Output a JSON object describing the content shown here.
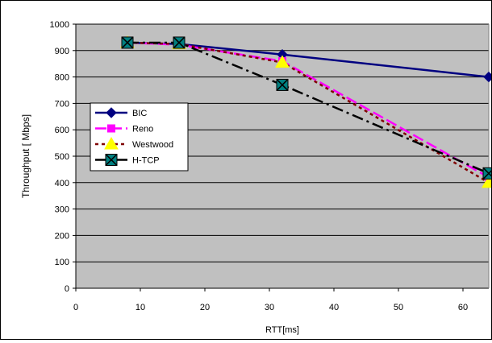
{
  "chart_data": {
    "type": "line",
    "title": "",
    "xlabel": "RTT[ms]",
    "ylabel": "Throughput [ Mbps]",
    "xlim": [
      0,
      64
    ],
    "ylim": [
      0,
      1000
    ],
    "x_ticks": [
      "0",
      "10",
      "20",
      "30",
      "40",
      "50",
      "60"
    ],
    "y_ticks": [
      "0",
      "100",
      "200",
      "300",
      "400",
      "500",
      "600",
      "700",
      "800",
      "900",
      "1000"
    ],
    "grid": true,
    "plot_background": "#c0c0c0",
    "legend_position": "left",
    "series": [
      {
        "name": "BIC",
        "color": "#000080",
        "marker": "diamond",
        "dash": "solid",
        "x": [
          8,
          16,
          32,
          64
        ],
        "y": [
          930,
          925,
          885,
          800
        ]
      },
      {
        "name": "Reno",
        "color": "#ff00ff",
        "marker": "square",
        "dash": "long-dash",
        "x": [
          8,
          16,
          32,
          64
        ],
        "y": [
          930,
          922,
          860,
          420
        ]
      },
      {
        "name": "Westwood",
        "color": "#800000",
        "marker": "triangle",
        "marker_color": "#ffff00",
        "dash": "dotted",
        "x": [
          8,
          16,
          32,
          64
        ],
        "y": [
          930,
          925,
          855,
          400
        ]
      },
      {
        "name": "H-TCP",
        "color": "#000000",
        "marker": "x-square",
        "marker_color": "#008080",
        "dash": "dash-dot",
        "x": [
          8,
          16,
          32,
          64
        ],
        "y": [
          930,
          930,
          770,
          435
        ]
      }
    ]
  }
}
